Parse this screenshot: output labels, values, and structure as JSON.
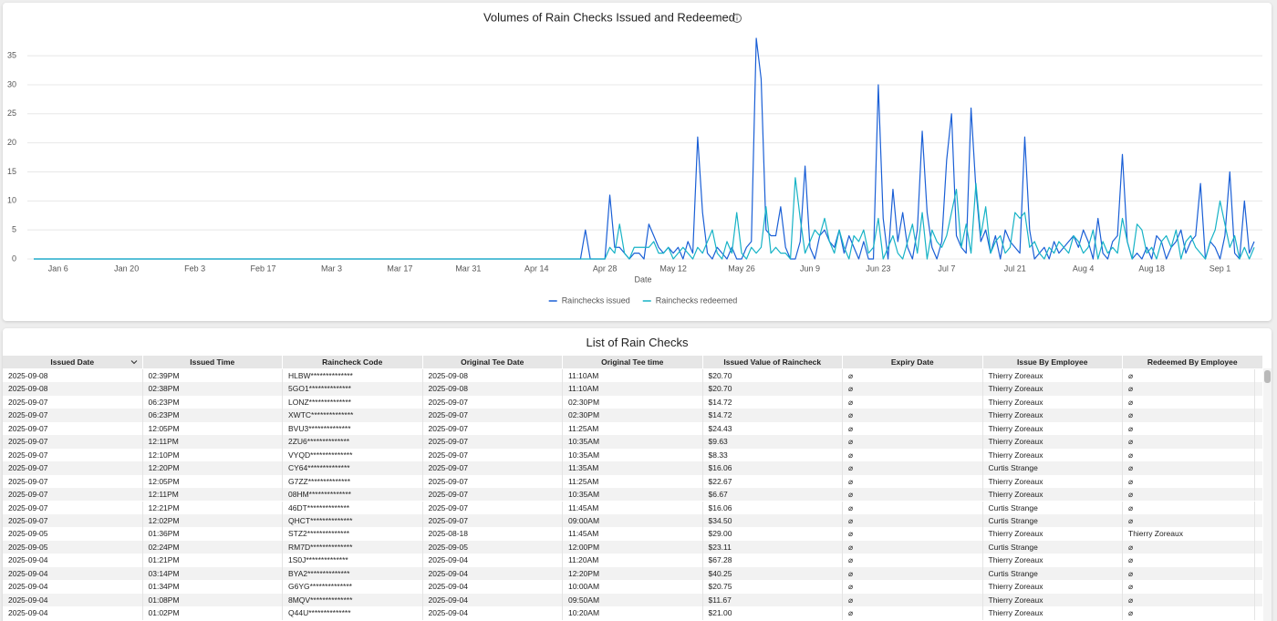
{
  "chart_data": {
    "type": "line",
    "title": "Volumes of Rain Checks Issued and Redeemed",
    "x_label": "Date",
    "categories": [
      "Jan 1",
      "Jan 2",
      "Jan 3",
      "Jan 4",
      "Jan 5",
      "Jan 6",
      "Jan 7",
      "Jan 8",
      "Jan 9",
      "Jan 10",
      "Jan 11",
      "Jan 12",
      "Jan 13",
      "Jan 14",
      "Jan 15",
      "Jan 16",
      "Jan 17",
      "Jan 18",
      "Jan 19",
      "Jan 20",
      "Jan 21",
      "Jan 22",
      "Jan 23",
      "Jan 24",
      "Jan 25",
      "Jan 26",
      "Jan 27",
      "Jan 28",
      "Jan 29",
      "Jan 30",
      "Jan 31",
      "Feb 1",
      "Feb 2",
      "Feb 3",
      "Feb 4",
      "Feb 5",
      "Feb 6",
      "Feb 7",
      "Feb 8",
      "Feb 9",
      "Feb 10",
      "Feb 11",
      "Feb 12",
      "Feb 13",
      "Feb 14",
      "Feb 15",
      "Feb 16",
      "Feb 17",
      "Feb 18",
      "Feb 19",
      "Feb 20",
      "Feb 21",
      "Feb 22",
      "Feb 23",
      "Feb 24",
      "Feb 25",
      "Feb 26",
      "Feb 27",
      "Feb 28",
      "Mar 1",
      "Mar 2",
      "Mar 3",
      "Mar 4",
      "Mar 5",
      "Mar 6",
      "Mar 7",
      "Mar 8",
      "Mar 9",
      "Mar 10",
      "Mar 11",
      "Mar 12",
      "Mar 13",
      "Mar 14",
      "Mar 15",
      "Mar 16",
      "Mar 17",
      "Mar 18",
      "Mar 19",
      "Mar 20",
      "Mar 21",
      "Mar 22",
      "Mar 23",
      "Mar 24",
      "Mar 25",
      "Mar 26",
      "Mar 27",
      "Mar 28",
      "Mar 29",
      "Mar 30",
      "Mar 31",
      "Apr 1",
      "Apr 2",
      "Apr 3",
      "Apr 4",
      "Apr 5",
      "Apr 6",
      "Apr 7",
      "Apr 8",
      "Apr 9",
      "Apr 10",
      "Apr 11",
      "Apr 12",
      "Apr 13",
      "Apr 14",
      "Apr 15",
      "Apr 16",
      "Apr 17",
      "Apr 18",
      "Apr 19",
      "Apr 20",
      "Apr 21",
      "Apr 22",
      "Apr 23",
      "Apr 24",
      "Apr 25",
      "Apr 26",
      "Apr 27",
      "Apr 28",
      "Apr 29",
      "Apr 30",
      "May 1",
      "May 2",
      "May 3",
      "May 4",
      "May 5",
      "May 6",
      "May 7",
      "May 8",
      "May 9",
      "May 10",
      "May 11",
      "May 12",
      "May 13",
      "May 14",
      "May 15",
      "May 16",
      "May 17",
      "May 18",
      "May 19",
      "May 20",
      "May 21",
      "May 22",
      "May 23",
      "May 24",
      "May 25",
      "May 26",
      "May 27",
      "May 28",
      "May 29",
      "May 30",
      "May 31",
      "Jun 1",
      "Jun 2",
      "Jun 3",
      "Jun 4",
      "Jun 5",
      "Jun 6",
      "Jun 7",
      "Jun 8",
      "Jun 9",
      "Jun 10",
      "Jun 11",
      "Jun 12",
      "Jun 13",
      "Jun 14",
      "Jun 15",
      "Jun 16",
      "Jun 17",
      "Jun 18",
      "Jun 19",
      "Jun 20",
      "Jun 21",
      "Jun 22",
      "Jun 23",
      "Jun 24",
      "Jun 25",
      "Jun 26",
      "Jun 27",
      "Jun 28",
      "Jun 29",
      "Jun 30",
      "Jul 1",
      "Jul 2",
      "Jul 3",
      "Jul 4",
      "Jul 5",
      "Jul 6",
      "Jul 7",
      "Jul 8",
      "Jul 9",
      "Jul 10",
      "Jul 11",
      "Jul 12",
      "Jul 13",
      "Jul 14",
      "Jul 15",
      "Jul 16",
      "Jul 17",
      "Jul 18",
      "Jul 19",
      "Jul 20",
      "Jul 21",
      "Jul 22",
      "Jul 23",
      "Jul 24",
      "Jul 25",
      "Jul 26",
      "Jul 27",
      "Jul 28",
      "Jul 29",
      "Jul 30",
      "Jul 31",
      "Aug 1",
      "Aug 2",
      "Aug 3",
      "Aug 4",
      "Aug 5",
      "Aug 6",
      "Aug 7",
      "Aug 8",
      "Aug 9",
      "Aug 10",
      "Aug 11",
      "Aug 12",
      "Aug 13",
      "Aug 14",
      "Aug 15",
      "Aug 16",
      "Aug 17",
      "Aug 18",
      "Aug 19",
      "Aug 20",
      "Aug 21",
      "Aug 22",
      "Aug 23",
      "Aug 24",
      "Aug 25",
      "Aug 26",
      "Aug 27",
      "Aug 28",
      "Aug 29",
      "Aug 30",
      "Aug 31",
      "Sep 1",
      "Sep 2",
      "Sep 3",
      "Sep 4",
      "Sep 5",
      "Sep 6",
      "Sep 7",
      "Sep 8"
    ],
    "series": [
      {
        "name": "Rainchecks issued",
        "color": "#1a5fd6",
        "values": [
          0,
          0,
          0,
          0,
          0,
          0,
          0,
          0,
          0,
          0,
          0,
          0,
          0,
          0,
          0,
          0,
          0,
          0,
          0,
          0,
          0,
          0,
          0,
          0,
          0,
          0,
          0,
          0,
          0,
          0,
          0,
          0,
          0,
          0,
          0,
          0,
          0,
          0,
          0,
          0,
          0,
          0,
          0,
          0,
          0,
          0,
          0,
          0,
          0,
          0,
          0,
          0,
          0,
          0,
          0,
          0,
          0,
          0,
          0,
          0,
          0,
          0,
          0,
          0,
          0,
          0,
          0,
          0,
          0,
          0,
          0,
          0,
          0,
          0,
          0,
          0,
          0,
          0,
          0,
          0,
          0,
          0,
          0,
          0,
          0,
          0,
          0,
          0,
          0,
          0,
          0,
          0,
          0,
          0,
          0,
          0,
          0,
          0,
          0,
          0,
          0,
          0,
          0,
          0,
          0,
          0,
          0,
          0,
          0,
          0,
          0,
          0,
          0,
          5,
          0,
          0,
          0,
          0,
          11,
          2,
          2,
          1,
          0,
          1,
          1,
          0,
          6,
          4,
          2,
          1,
          2,
          1,
          2,
          0,
          3,
          1,
          21,
          8,
          1,
          0,
          2,
          1,
          0,
          2,
          0,
          0,
          2,
          3,
          38,
          31,
          5,
          4,
          4,
          9,
          2,
          0,
          0,
          3,
          16,
          2,
          0,
          4,
          5,
          3,
          2,
          5,
          1,
          4,
          2,
          0,
          3,
          0,
          0,
          30,
          7,
          0,
          12,
          3,
          8,
          2,
          0,
          5,
          22,
          8,
          2,
          0,
          3,
          17,
          25,
          4,
          2,
          1,
          26,
          12,
          3,
          5,
          1,
          4,
          0,
          5,
          3,
          2,
          1,
          21,
          5,
          0,
          1,
          2,
          0,
          3,
          1,
          2,
          3,
          4,
          2,
          5,
          3,
          0,
          7,
          1,
          0,
          3,
          4,
          18,
          3,
          0,
          1,
          0,
          2,
          0,
          4,
          3,
          0,
          2,
          3,
          5,
          1,
          3,
          4,
          13,
          0,
          3,
          2,
          0,
          4,
          15,
          1,
          0,
          10,
          1,
          3
        ]
      },
      {
        "name": "Rainchecks redeemed",
        "color": "#17b3c6",
        "values": [
          0,
          0,
          0,
          0,
          0,
          0,
          0,
          0,
          0,
          0,
          0,
          0,
          0,
          0,
          0,
          0,
          0,
          0,
          0,
          0,
          0,
          0,
          0,
          0,
          0,
          0,
          0,
          0,
          0,
          0,
          0,
          0,
          0,
          0,
          0,
          0,
          0,
          0,
          0,
          0,
          0,
          0,
          0,
          0,
          0,
          0,
          0,
          0,
          0,
          0,
          0,
          0,
          0,
          0,
          0,
          0,
          0,
          0,
          0,
          0,
          0,
          0,
          0,
          0,
          0,
          0,
          0,
          0,
          0,
          0,
          0,
          0,
          0,
          0,
          0,
          0,
          0,
          0,
          0,
          0,
          0,
          0,
          0,
          0,
          0,
          0,
          0,
          0,
          0,
          0,
          0,
          0,
          0,
          0,
          0,
          0,
          0,
          0,
          0,
          0,
          0,
          0,
          0,
          0,
          0,
          0,
          0,
          0,
          0,
          0,
          0,
          0,
          0,
          0,
          0,
          0,
          0,
          0,
          2,
          1,
          6,
          1,
          0,
          2,
          2,
          2,
          2,
          3,
          1,
          1,
          2,
          0,
          1,
          2,
          1,
          0,
          2,
          1,
          3,
          5,
          1,
          0,
          3,
          1,
          8,
          1,
          0,
          2,
          1,
          2,
          9,
          1,
          2,
          1,
          1,
          0,
          14,
          7,
          1,
          3,
          5,
          4,
          7,
          3,
          1,
          5,
          2,
          0,
          4,
          3,
          5,
          1,
          2,
          7,
          0,
          2,
          4,
          1,
          0,
          3,
          6,
          1,
          8,
          0,
          5,
          3,
          2,
          4,
          8,
          12,
          2,
          6,
          1,
          13,
          4,
          9,
          1,
          3,
          4,
          1,
          2,
          8,
          7,
          8,
          2,
          3,
          1,
          0,
          2,
          1,
          3,
          2,
          1,
          4,
          3,
          1,
          2,
          5,
          0,
          3,
          1,
          2,
          1,
          7,
          3,
          0,
          6,
          5,
          1,
          2,
          0,
          3,
          4,
          2,
          5,
          0,
          3,
          4,
          2,
          1,
          0,
          3,
          5,
          10,
          6,
          2,
          4,
          0,
          2,
          0,
          2
        ]
      }
    ],
    "xticks": [
      "Jan 6",
      "Jan 20",
      "Feb 3",
      "Feb 17",
      "Mar 3",
      "Mar 17",
      "Mar 31",
      "Apr 14",
      "Apr 28",
      "May 12",
      "May 26",
      "Jun 9",
      "Jun 23",
      "Jul 7",
      "Jul 21",
      "Aug 4",
      "Aug 18",
      "Sep 1"
    ],
    "ylim": [
      0,
      38
    ],
    "yticks": [
      0,
      5,
      10,
      15,
      20,
      25,
      30,
      35
    ],
    "grid": true,
    "legend": "bottom"
  },
  "table": {
    "title": "List of Rain Checks",
    "columns": [
      "Issued Date",
      "Issued Time",
      "Raincheck Code",
      "Original Tee Date",
      "Original Tee time",
      "Issued Value of Raincheck",
      "Expiry Date",
      "Issue By Employee",
      "Redeemed By Employee"
    ],
    "rows": [
      [
        "2025-09-08",
        "02:39PM",
        "HLBW**************",
        "2025-09-08",
        "11:10AM",
        "$20.70",
        "⌀",
        "Thierry Zoreaux",
        "⌀"
      ],
      [
        "2025-09-08",
        "02:38PM",
        "5GO1**************",
        "2025-09-08",
        "11:10AM",
        "$20.70",
        "⌀",
        "Thierry Zoreaux",
        "⌀"
      ],
      [
        "2025-09-07",
        "06:23PM",
        "LONZ**************",
        "2025-09-07",
        "02:30PM",
        "$14.72",
        "⌀",
        "Thierry Zoreaux",
        "⌀"
      ],
      [
        "2025-09-07",
        "06:23PM",
        "XWTC**************",
        "2025-09-07",
        "02:30PM",
        "$14.72",
        "⌀",
        "Thierry Zoreaux",
        "⌀"
      ],
      [
        "2025-09-07",
        "12:05PM",
        "BVU3**************",
        "2025-09-07",
        "11:25AM",
        "$24.43",
        "⌀",
        "Thierry Zoreaux",
        "⌀"
      ],
      [
        "2025-09-07",
        "12:11PM",
        "2ZU6**************",
        "2025-09-07",
        "10:35AM",
        "$9.63",
        "⌀",
        "Thierry Zoreaux",
        "⌀"
      ],
      [
        "2025-09-07",
        "12:10PM",
        "VYQD**************",
        "2025-09-07",
        "10:35AM",
        "$8.33",
        "⌀",
        "Thierry Zoreaux",
        "⌀"
      ],
      [
        "2025-09-07",
        "12:20PM",
        "CY64**************",
        "2025-09-07",
        "11:35AM",
        "$16.06",
        "⌀",
        "Curtis Strange",
        "⌀"
      ],
      [
        "2025-09-07",
        "12:05PM",
        "G7ZZ**************",
        "2025-09-07",
        "11:25AM",
        "$22.67",
        "⌀",
        "Thierry Zoreaux",
        "⌀"
      ],
      [
        "2025-09-07",
        "12:11PM",
        "08HM**************",
        "2025-09-07",
        "10:35AM",
        "$6.67",
        "⌀",
        "Thierry Zoreaux",
        "⌀"
      ],
      [
        "2025-09-07",
        "12:21PM",
        "46DT**************",
        "2025-09-07",
        "11:45AM",
        "$16.06",
        "⌀",
        "Curtis Strange",
        "⌀"
      ],
      [
        "2025-09-07",
        "12:02PM",
        "QHCT**************",
        "2025-09-07",
        "09:00AM",
        "$34.50",
        "⌀",
        "Curtis Strange",
        "⌀"
      ],
      [
        "2025-09-05",
        "01:36PM",
        "STZ2**************",
        "2025-08-18",
        "11:45AM",
        "$29.00",
        "⌀",
        "Thierry Zoreaux",
        "Thierry Zoreaux"
      ],
      [
        "2025-09-05",
        "02:24PM",
        "RM7D**************",
        "2025-09-05",
        "12:00PM",
        "$23.11",
        "⌀",
        "Curtis Strange",
        "⌀"
      ],
      [
        "2025-09-04",
        "01:21PM",
        "1S0J**************",
        "2025-09-04",
        "11:20AM",
        "$67.28",
        "⌀",
        "Thierry Zoreaux",
        "⌀"
      ],
      [
        "2025-09-04",
        "03:14PM",
        "BYA2**************",
        "2025-09-04",
        "12:20PM",
        "$40.25",
        "⌀",
        "Curtis Strange",
        "⌀"
      ],
      [
        "2025-09-04",
        "01:34PM",
        "G6YG**************",
        "2025-09-04",
        "10:00AM",
        "$20.75",
        "⌀",
        "Thierry Zoreaux",
        "⌀"
      ],
      [
        "2025-09-04",
        "01:08PM",
        "8MQV**************",
        "2025-09-04",
        "09:50AM",
        "$11.67",
        "⌀",
        "Thierry Zoreaux",
        "⌀"
      ],
      [
        "2025-09-04",
        "01:02PM",
        "Q44U**************",
        "2025-09-04",
        "10:20AM",
        "$21.00",
        "⌀",
        "Thierry Zoreaux",
        "⌀"
      ]
    ]
  }
}
